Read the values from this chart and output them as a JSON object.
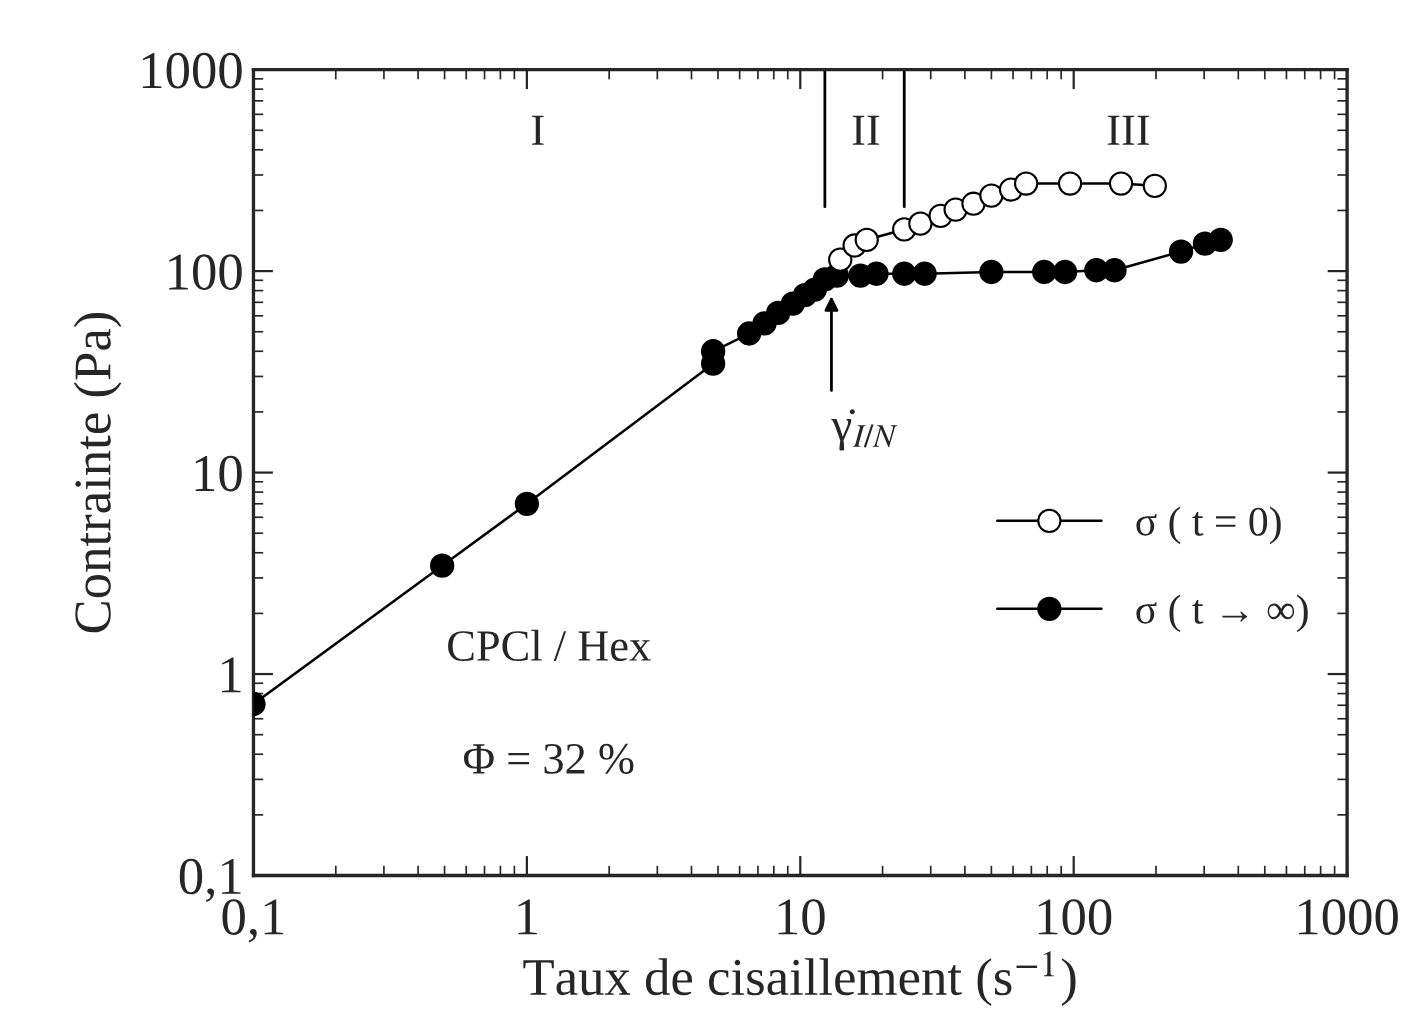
{
  "chart_data": {
    "type": "line",
    "xlabel": "Taux de cisaillement (s$^{−1}$)",
    "ylabel": "Contrainte (Pa)",
    "log": "xy",
    "xlim": [
      0.1,
      1000
    ],
    "ylim": [
      0.1,
      1000
    ],
    "xticks": [
      {
        "value": 0.1,
        "label": "0,1"
      },
      1,
      10,
      100,
      1000
    ],
    "yticks": [
      {
        "value": 0.1,
        "label": "0,1"
      },
      1,
      10,
      100,
      1000
    ],
    "marker": "circle",
    "grid": false,
    "legend": "right",
    "series": [
      {
        "name": "σ ( t = 0)",
        "color": "#ffffff",
        "x": [
          14.0,
          15.8,
          17.5,
          24,
          27.5,
          32.6,
          37,
          43,
          50,
          59,
          67,
          97,
          149,
          198
        ],
        "values": [
          114,
          134,
          143,
          161,
          172,
          188,
          202,
          216,
          237,
          254,
          272,
          272,
          272,
          265
        ]
      },
      {
        "name": "σ ( t → ∞)",
        "color": "#000000",
        "x": [
          0.1,
          0.49,
          1.0,
          4.8,
          4.8,
          6.5,
          7.4,
          8.3,
          9.4,
          10.4,
          11.3,
          12.3,
          13.6,
          16.6,
          19,
          24,
          28.5,
          50,
          78,
          93,
          121,
          141,
          247,
          302,
          345
        ],
        "values": [
          0.71,
          3.45,
          7.0,
          34.7,
          40,
          49,
          55,
          62,
          69,
          76,
          81,
          91,
          95,
          95,
          97,
          97,
          97,
          99,
          99,
          99,
          101,
          101,
          125,
          137,
          143
        ]
      }
    ],
    "ref_lines": [
      {
        "axis": "x",
        "value": 12.3,
        "label": null
      },
      {
        "axis": "x",
        "value": 24,
        "label": null
      }
    ],
    "annotations": [
      {
        "text": "γ̇$_{I/N}$",
        "x": 13,
        "y": 80
      },
      "I",
      "II",
      "III",
      "CPCl / Hex",
      "Φ = 32 %"
    ]
  }
}
